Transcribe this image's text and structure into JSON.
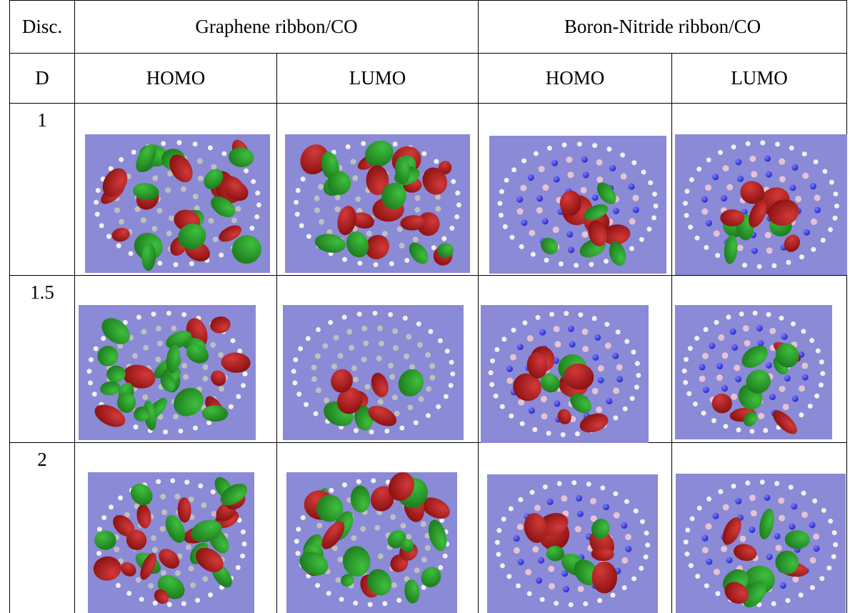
{
  "header": {
    "disc": "Disc.",
    "graphene": "Graphene ribbon/CO",
    "bn": "Boron-Nitride ribbon/CO",
    "d": "D",
    "homo1": "HOMO",
    "lumo1": "LUMO",
    "homo2": "HOMO",
    "lumo2": "LUMO"
  },
  "rows": [
    {
      "label": "1"
    },
    {
      "label": "1.5"
    },
    {
      "label": "2"
    }
  ],
  "colors": {
    "background": "#8a8ad6",
    "lobe_red": "#8a1010",
    "lobe_green": "#1c7a1c",
    "boron": "#e6c2d2",
    "nitrogen": "#2222c8",
    "hydrogen": "#f0f0f0",
    "carbon": "#bfbfbf"
  }
}
